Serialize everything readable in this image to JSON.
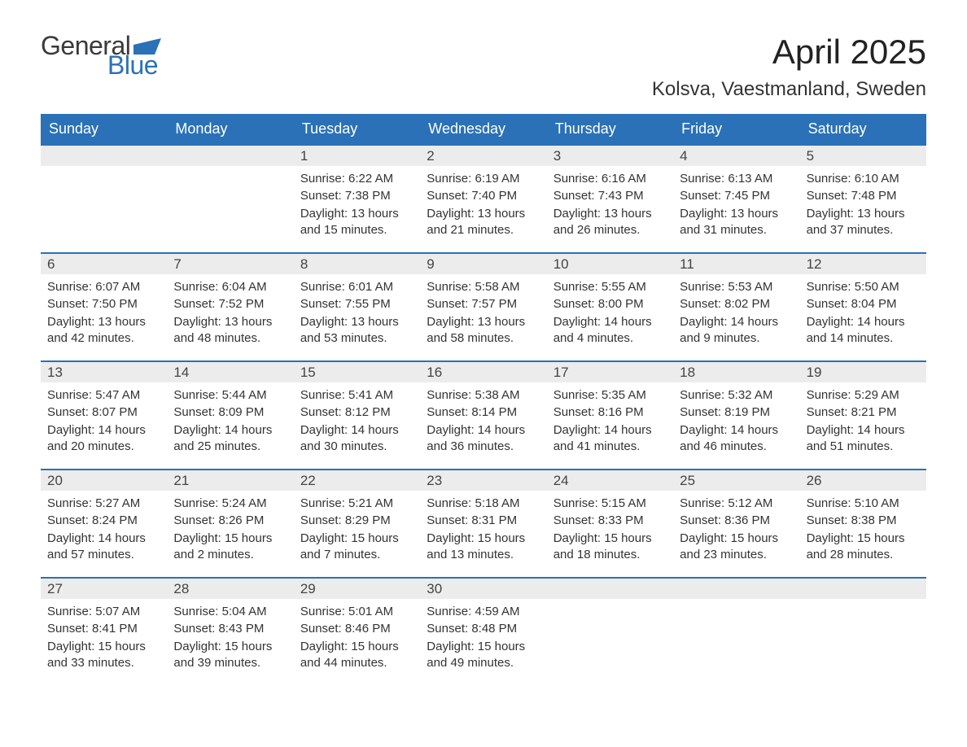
{
  "logo": {
    "text_general": "General",
    "text_blue": "Blue",
    "flag_color": "#2a71b8"
  },
  "header": {
    "month_title": "April 2025",
    "location": "Kolsva, Vaestmanland, Sweden"
  },
  "colors": {
    "header_bg": "#2a71b8",
    "header_text": "#ffffff",
    "daynum_bg": "#ececec",
    "border": "#2a71b8",
    "body_text": "#333333",
    "title_text": "#222222"
  },
  "weekdays": [
    "Sunday",
    "Monday",
    "Tuesday",
    "Wednesday",
    "Thursday",
    "Friday",
    "Saturday"
  ],
  "row_labels": {
    "sunrise": "Sunrise:",
    "sunset": "Sunset:",
    "daylight": "Daylight:"
  },
  "weeks": [
    [
      {
        "empty": true
      },
      {
        "empty": true
      },
      {
        "day": "1",
        "sunrise": "6:22 AM",
        "sunset": "7:38 PM",
        "daylight_h": "13",
        "daylight_m": "15"
      },
      {
        "day": "2",
        "sunrise": "6:19 AM",
        "sunset": "7:40 PM",
        "daylight_h": "13",
        "daylight_m": "21"
      },
      {
        "day": "3",
        "sunrise": "6:16 AM",
        "sunset": "7:43 PM",
        "daylight_h": "13",
        "daylight_m": "26"
      },
      {
        "day": "4",
        "sunrise": "6:13 AM",
        "sunset": "7:45 PM",
        "daylight_h": "13",
        "daylight_m": "31"
      },
      {
        "day": "5",
        "sunrise": "6:10 AM",
        "sunset": "7:48 PM",
        "daylight_h": "13",
        "daylight_m": "37"
      }
    ],
    [
      {
        "day": "6",
        "sunrise": "6:07 AM",
        "sunset": "7:50 PM",
        "daylight_h": "13",
        "daylight_m": "42"
      },
      {
        "day": "7",
        "sunrise": "6:04 AM",
        "sunset": "7:52 PM",
        "daylight_h": "13",
        "daylight_m": "48"
      },
      {
        "day": "8",
        "sunrise": "6:01 AM",
        "sunset": "7:55 PM",
        "daylight_h": "13",
        "daylight_m": "53"
      },
      {
        "day": "9",
        "sunrise": "5:58 AM",
        "sunset": "7:57 PM",
        "daylight_h": "13",
        "daylight_m": "58"
      },
      {
        "day": "10",
        "sunrise": "5:55 AM",
        "sunset": "8:00 PM",
        "daylight_h": "14",
        "daylight_m": "4"
      },
      {
        "day": "11",
        "sunrise": "5:53 AM",
        "sunset": "8:02 PM",
        "daylight_h": "14",
        "daylight_m": "9"
      },
      {
        "day": "12",
        "sunrise": "5:50 AM",
        "sunset": "8:04 PM",
        "daylight_h": "14",
        "daylight_m": "14"
      }
    ],
    [
      {
        "day": "13",
        "sunrise": "5:47 AM",
        "sunset": "8:07 PM",
        "daylight_h": "14",
        "daylight_m": "20"
      },
      {
        "day": "14",
        "sunrise": "5:44 AM",
        "sunset": "8:09 PM",
        "daylight_h": "14",
        "daylight_m": "25"
      },
      {
        "day": "15",
        "sunrise": "5:41 AM",
        "sunset": "8:12 PM",
        "daylight_h": "14",
        "daylight_m": "30"
      },
      {
        "day": "16",
        "sunrise": "5:38 AM",
        "sunset": "8:14 PM",
        "daylight_h": "14",
        "daylight_m": "36"
      },
      {
        "day": "17",
        "sunrise": "5:35 AM",
        "sunset": "8:16 PM",
        "daylight_h": "14",
        "daylight_m": "41"
      },
      {
        "day": "18",
        "sunrise": "5:32 AM",
        "sunset": "8:19 PM",
        "daylight_h": "14",
        "daylight_m": "46"
      },
      {
        "day": "19",
        "sunrise": "5:29 AM",
        "sunset": "8:21 PM",
        "daylight_h": "14",
        "daylight_m": "51"
      }
    ],
    [
      {
        "day": "20",
        "sunrise": "5:27 AM",
        "sunset": "8:24 PM",
        "daylight_h": "14",
        "daylight_m": "57"
      },
      {
        "day": "21",
        "sunrise": "5:24 AM",
        "sunset": "8:26 PM",
        "daylight_h": "15",
        "daylight_m": "2"
      },
      {
        "day": "22",
        "sunrise": "5:21 AM",
        "sunset": "8:29 PM",
        "daylight_h": "15",
        "daylight_m": "7"
      },
      {
        "day": "23",
        "sunrise": "5:18 AM",
        "sunset": "8:31 PM",
        "daylight_h": "15",
        "daylight_m": "13"
      },
      {
        "day": "24",
        "sunrise": "5:15 AM",
        "sunset": "8:33 PM",
        "daylight_h": "15",
        "daylight_m": "18"
      },
      {
        "day": "25",
        "sunrise": "5:12 AM",
        "sunset": "8:36 PM",
        "daylight_h": "15",
        "daylight_m": "23"
      },
      {
        "day": "26",
        "sunrise": "5:10 AM",
        "sunset": "8:38 PM",
        "daylight_h": "15",
        "daylight_m": "28"
      }
    ],
    [
      {
        "day": "27",
        "sunrise": "5:07 AM",
        "sunset": "8:41 PM",
        "daylight_h": "15",
        "daylight_m": "33"
      },
      {
        "day": "28",
        "sunrise": "5:04 AM",
        "sunset": "8:43 PM",
        "daylight_h": "15",
        "daylight_m": "39"
      },
      {
        "day": "29",
        "sunrise": "5:01 AM",
        "sunset": "8:46 PM",
        "daylight_h": "15",
        "daylight_m": "44"
      },
      {
        "day": "30",
        "sunrise": "4:59 AM",
        "sunset": "8:48 PM",
        "daylight_h": "15",
        "daylight_m": "49"
      },
      {
        "empty": true
      },
      {
        "empty": true
      },
      {
        "empty": true
      }
    ]
  ]
}
